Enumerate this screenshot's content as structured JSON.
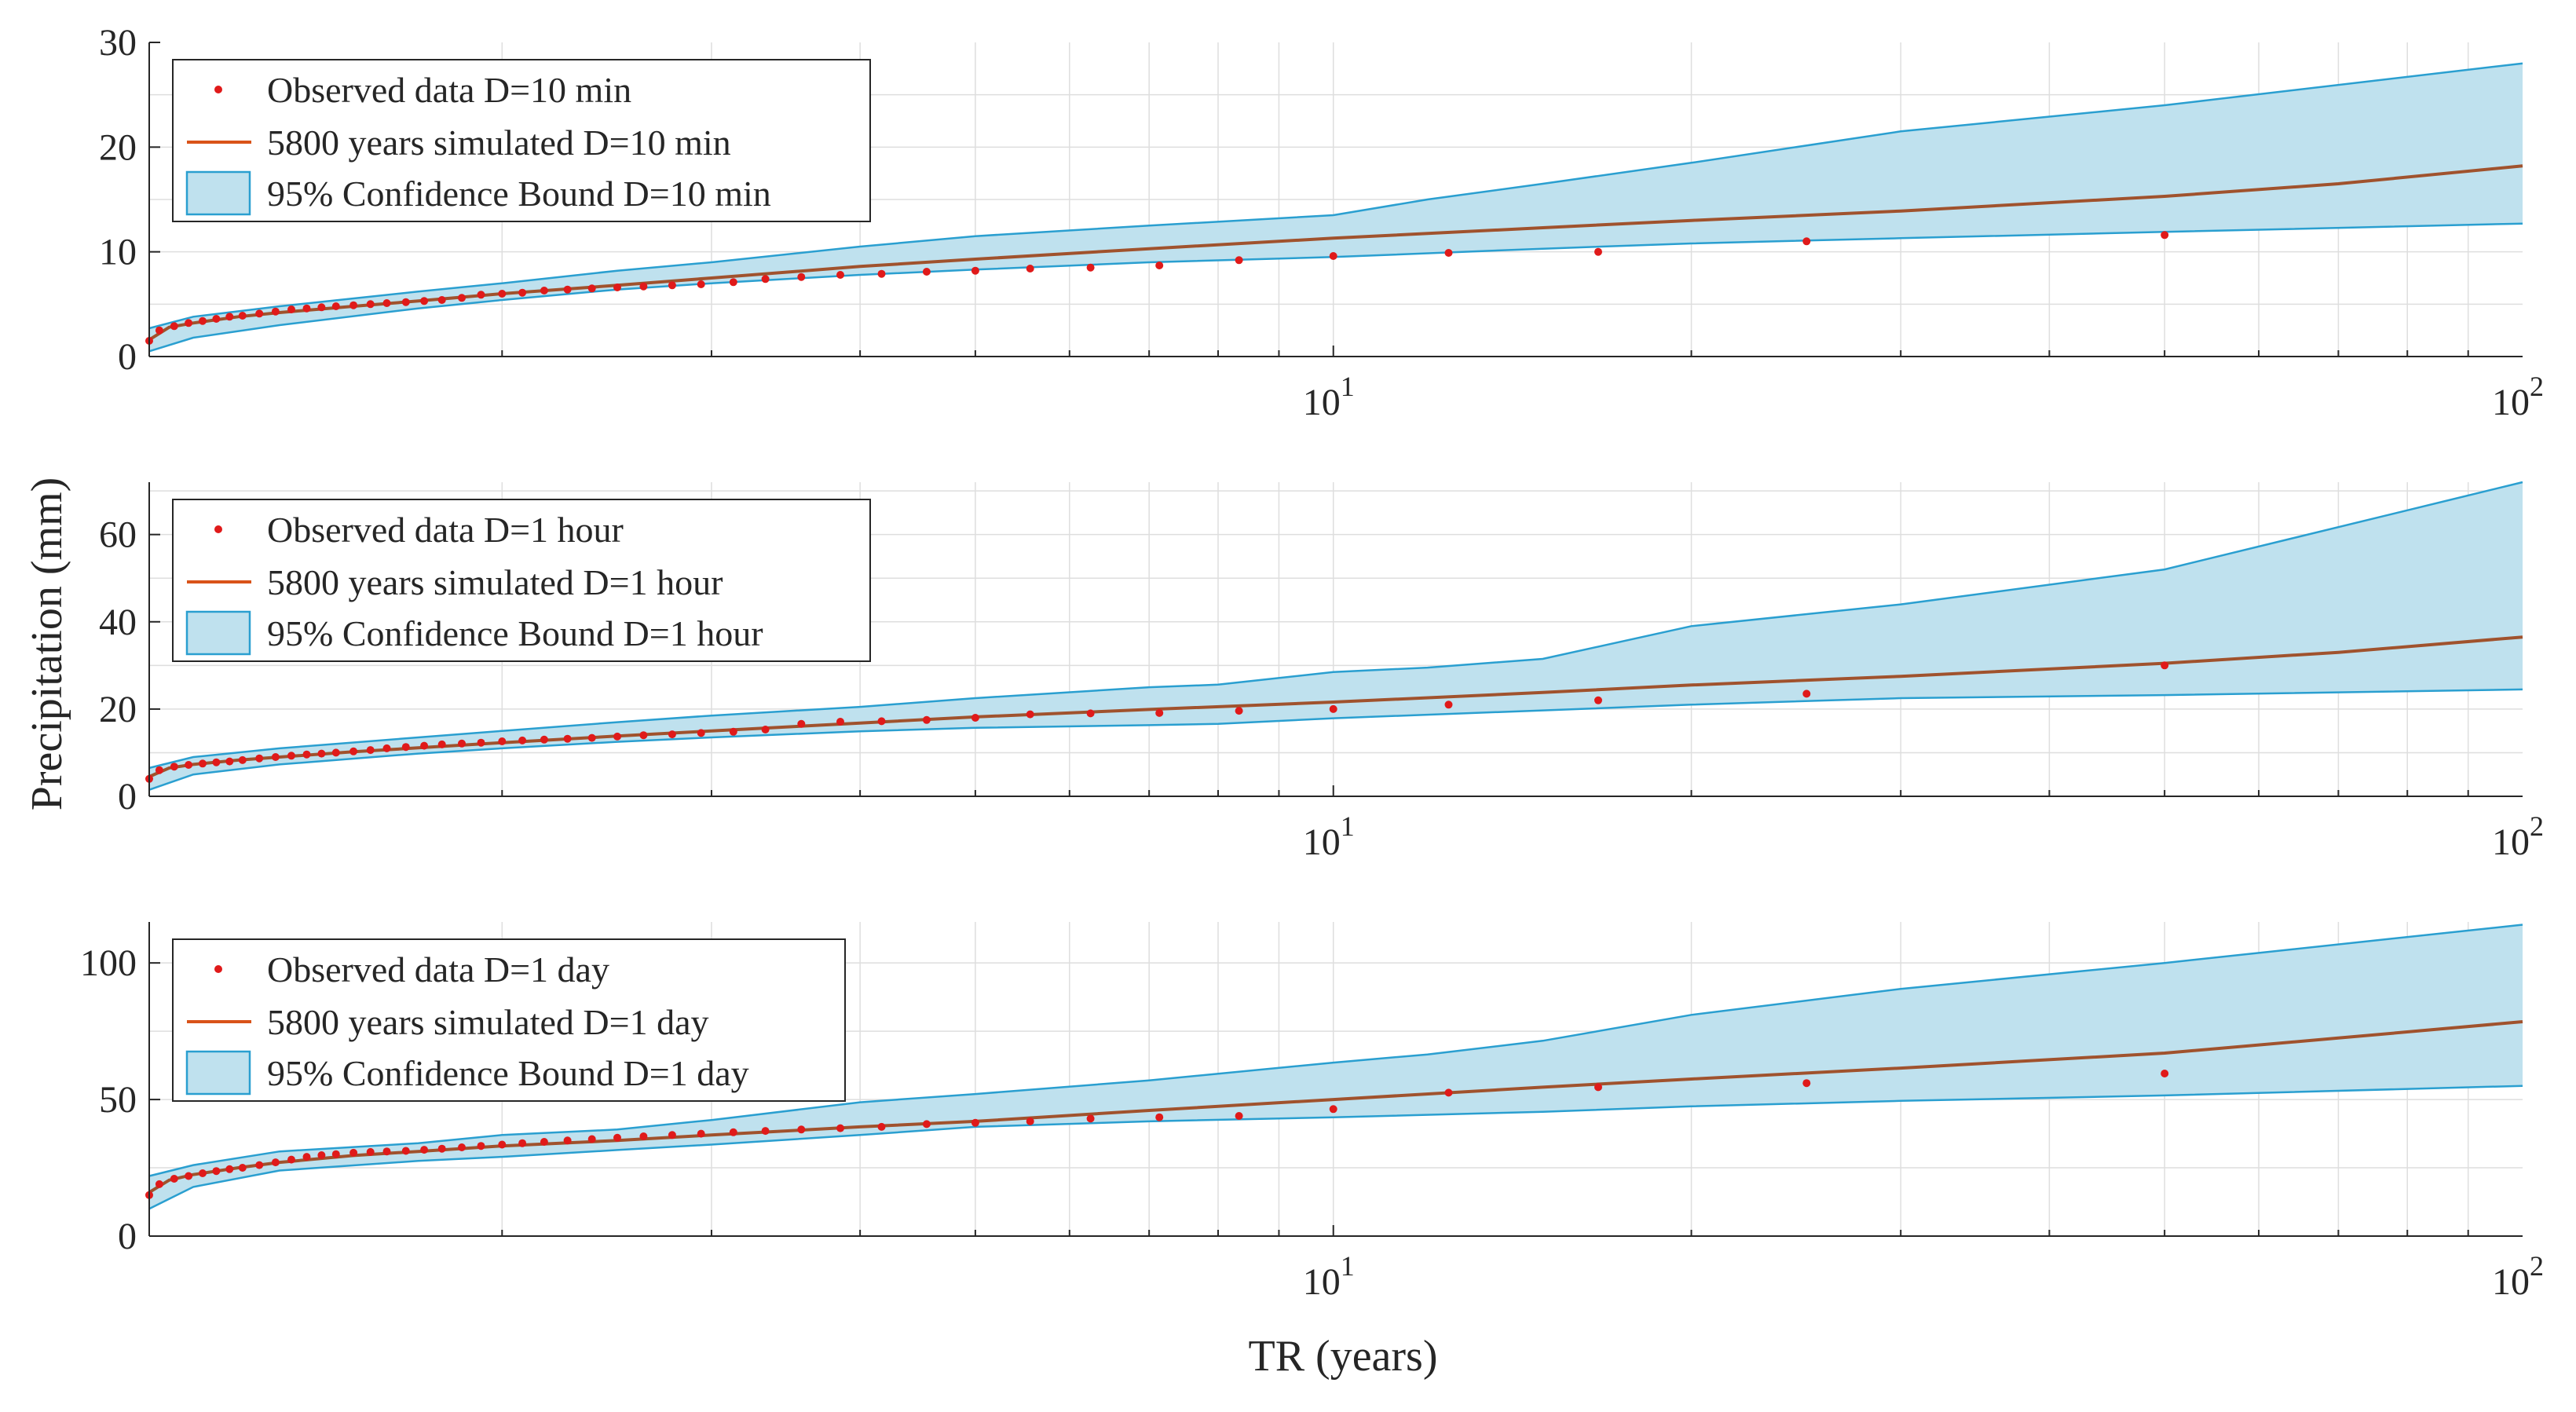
{
  "figure": {
    "xlabel": "TR (years)",
    "ylabel": "Precipitation (mm)",
    "x_base": "10",
    "colors": {
      "observed": "#e01a1a",
      "simulated": "#a0522d",
      "simulated_legend": "#d95319",
      "band_fill": "#bfe1ee",
      "band_edge": "#2a9fd0",
      "grid": "#dedede",
      "axis": "#262626"
    }
  },
  "chart_data": [
    {
      "type": "line",
      "title": "",
      "xlabel": "",
      "ylabel": "",
      "xscale": "log",
      "xlim": [
        1.01,
        100
      ],
      "ylim": [
        0,
        30
      ],
      "yticks": [
        0,
        10,
        20,
        30
      ],
      "xtick_labels": [
        {
          "value": 10,
          "exp": "1"
        },
        {
          "value": 100,
          "exp": "2"
        }
      ],
      "legend": {
        "position": "top-left",
        "entries": [
          "Observed data D=10 min",
          "5800 years simulated D=10 min",
          "95% Confidence Bound D=10 min"
        ]
      },
      "observed": {
        "name": "Observed data D=10 min",
        "x": [
          1.01,
          1.03,
          1.06,
          1.09,
          1.12,
          1.15,
          1.18,
          1.21,
          1.25,
          1.29,
          1.33,
          1.37,
          1.41,
          1.45,
          1.5,
          1.55,
          1.6,
          1.66,
          1.72,
          1.78,
          1.85,
          1.92,
          2.0,
          2.08,
          2.17,
          2.27,
          2.38,
          2.5,
          2.63,
          2.78,
          2.94,
          3.13,
          3.33,
          3.57,
          3.85,
          4.17,
          4.55,
          5.0,
          5.56,
          6.25,
          7.14,
          8.33,
          10.0,
          12.5,
          16.7,
          25.0,
          50.0
        ],
        "y": [
          1.5,
          2.5,
          2.9,
          3.2,
          3.4,
          3.6,
          3.8,
          3.9,
          4.1,
          4.3,
          4.5,
          4.6,
          4.7,
          4.8,
          4.9,
          5.0,
          5.1,
          5.2,
          5.3,
          5.4,
          5.6,
          5.9,
          6.0,
          6.1,
          6.3,
          6.4,
          6.5,
          6.6,
          6.7,
          6.8,
          6.9,
          7.1,
          7.4,
          7.6,
          7.8,
          7.9,
          8.1,
          8.2,
          8.4,
          8.5,
          8.7,
          9.2,
          9.6,
          9.9,
          10.0,
          11.0,
          11.6
        ]
      },
      "simulated": {
        "name": "5800 years simulated D=10 min",
        "x": [
          1.01,
          1.05,
          1.1,
          1.2,
          1.3,
          1.5,
          1.7,
          2.0,
          2.5,
          3.0,
          4.0,
          5.0,
          7.0,
          10.0,
          15.0,
          20.0,
          30.0,
          50.0,
          70.0,
          100.0
        ],
        "y": [
          1.6,
          2.8,
          3.2,
          3.8,
          4.2,
          4.8,
          5.3,
          6.0,
          6.8,
          7.5,
          8.6,
          9.3,
          10.3,
          11.3,
          12.3,
          13.0,
          13.9,
          15.3,
          16.5,
          18.2
        ]
      },
      "band_upper": {
        "x": [
          1.01,
          1.1,
          1.3,
          1.7,
          2.0,
          2.5,
          3.0,
          4.0,
          5.0,
          7.0,
          10.0,
          12.0,
          15.0,
          20.0,
          30.0,
          50.0,
          100.0
        ],
        "y": [
          2.7,
          3.8,
          4.8,
          6.2,
          7.0,
          8.2,
          9.0,
          10.5,
          11.5,
          12.5,
          13.5,
          15.0,
          16.5,
          18.5,
          21.5,
          24.0,
          28.0
        ]
      },
      "band_lower": {
        "x": [
          1.01,
          1.1,
          1.3,
          1.7,
          2.0,
          2.5,
          3.0,
          4.0,
          5.0,
          7.0,
          10.0,
          15.0,
          20.0,
          30.0,
          50.0,
          100.0
        ],
        "y": [
          0.5,
          1.8,
          3.0,
          4.6,
          5.4,
          6.4,
          7.0,
          7.8,
          8.3,
          9.0,
          9.5,
          10.3,
          10.8,
          11.3,
          11.9,
          12.7
        ]
      }
    },
    {
      "type": "line",
      "title": "",
      "xlabel": "",
      "ylabel": "",
      "xscale": "log",
      "xlim": [
        1.01,
        100
      ],
      "ylim": [
        0,
        72
      ],
      "yticks": [
        0,
        20,
        40,
        60
      ],
      "xtick_labels": [
        {
          "value": 10,
          "exp": "1"
        },
        {
          "value": 100,
          "exp": "2"
        }
      ],
      "legend": {
        "position": "top-left",
        "entries": [
          "Observed data D=1 hour",
          "5800 years simulated D=1 hour",
          "95% Confidence Bound D=1 hour"
        ]
      },
      "observed": {
        "name": "Observed data D=1 hour",
        "x": [
          1.01,
          1.03,
          1.06,
          1.09,
          1.12,
          1.15,
          1.18,
          1.21,
          1.25,
          1.29,
          1.33,
          1.37,
          1.41,
          1.45,
          1.5,
          1.55,
          1.6,
          1.66,
          1.72,
          1.78,
          1.85,
          1.92,
          2.0,
          2.08,
          2.17,
          2.27,
          2.38,
          2.5,
          2.63,
          2.78,
          2.94,
          3.13,
          3.33,
          3.57,
          3.85,
          4.17,
          4.55,
          5.0,
          5.56,
          6.25,
          7.14,
          8.33,
          10.0,
          12.5,
          16.7,
          25.0,
          50.0
        ],
        "y": [
          4.0,
          6.0,
          6.8,
          7.2,
          7.5,
          7.8,
          8.0,
          8.3,
          8.7,
          9.0,
          9.3,
          9.6,
          9.8,
          10.0,
          10.3,
          10.6,
          11.0,
          11.3,
          11.6,
          11.9,
          12.1,
          12.3,
          12.6,
          12.8,
          13.0,
          13.2,
          13.4,
          13.7,
          14.0,
          14.2,
          14.5,
          14.8,
          15.3,
          16.6,
          17.1,
          17.2,
          17.5,
          18.0,
          18.8,
          19.0,
          19.1,
          19.6,
          20.0,
          21.0,
          22.0,
          23.5,
          30.0
        ]
      },
      "simulated": {
        "name": "5800 years simulated D=1 hour",
        "x": [
          1.01,
          1.05,
          1.1,
          1.2,
          1.3,
          1.5,
          1.7,
          2.0,
          2.5,
          3.0,
          4.0,
          5.0,
          7.0,
          10.0,
          15.0,
          20.0,
          30.0,
          50.0,
          70.0,
          100.0
        ],
        "y": [
          4.5,
          6.5,
          7.3,
          8.3,
          9.0,
          10.2,
          11.1,
          12.3,
          13.8,
          15.0,
          16.8,
          18.2,
          19.9,
          21.6,
          23.8,
          25.5,
          27.5,
          30.5,
          33.0,
          36.5
        ]
      },
      "band_upper": {
        "x": [
          1.01,
          1.1,
          1.3,
          1.7,
          2.0,
          2.5,
          3.0,
          4.0,
          5.0,
          7.0,
          8.0,
          10.0,
          12.0,
          15.0,
          20.0,
          30.0,
          50.0,
          100.0
        ],
        "y": [
          6.5,
          9.0,
          11.0,
          13.5,
          15.0,
          17.0,
          18.5,
          20.5,
          22.5,
          25.0,
          25.6,
          28.5,
          29.5,
          31.5,
          39.0,
          44.0,
          52.0,
          72.0
        ]
      },
      "band_lower": {
        "x": [
          1.01,
          1.1,
          1.3,
          1.7,
          2.0,
          2.5,
          3.0,
          4.0,
          5.0,
          7.0,
          8.0,
          10.0,
          15.0,
          20.0,
          30.0,
          50.0,
          100.0
        ],
        "y": [
          1.5,
          5.0,
          7.3,
          9.8,
          11.0,
          12.5,
          13.5,
          14.9,
          15.7,
          16.3,
          16.6,
          17.9,
          19.7,
          21.0,
          22.5,
          23.2,
          24.5
        ]
      }
    },
    {
      "type": "line",
      "title": "",
      "xlabel": "",
      "ylabel": "",
      "xscale": "log",
      "xlim": [
        1.01,
        100
      ],
      "ylim": [
        0,
        115
      ],
      "yticks": [
        0,
        50,
        100
      ],
      "xtick_labels": [
        {
          "value": 10,
          "exp": "1"
        },
        {
          "value": 100,
          "exp": "2"
        }
      ],
      "legend": {
        "position": "top-left",
        "entries": [
          "Observed data D=1 day",
          "5800 years simulated D=1 day",
          "95% Confidence Bound D=1 day"
        ]
      },
      "observed": {
        "name": "Observed data D=1 day",
        "x": [
          1.01,
          1.03,
          1.06,
          1.09,
          1.12,
          1.15,
          1.18,
          1.21,
          1.25,
          1.29,
          1.33,
          1.37,
          1.41,
          1.45,
          1.5,
          1.55,
          1.6,
          1.66,
          1.72,
          1.78,
          1.85,
          1.92,
          2.0,
          2.08,
          2.17,
          2.27,
          2.38,
          2.5,
          2.63,
          2.78,
          2.94,
          3.13,
          3.33,
          3.57,
          3.85,
          4.17,
          4.55,
          5.0,
          5.56,
          6.25,
          7.14,
          8.33,
          10.0,
          12.5,
          16.7,
          25.0,
          50.0
        ],
        "y": [
          15.0,
          19.0,
          21.0,
          22.0,
          23.0,
          23.8,
          24.5,
          25.0,
          26.0,
          27.0,
          28.0,
          29.0,
          29.6,
          30.0,
          30.5,
          30.8,
          31.0,
          31.2,
          31.6,
          32.0,
          32.5,
          33.0,
          33.5,
          34.0,
          34.5,
          35.0,
          35.5,
          36.0,
          36.5,
          37.0,
          37.5,
          38.0,
          38.5,
          39.0,
          39.5,
          40.0,
          41.0,
          41.5,
          42.0,
          43.0,
          43.5,
          44.0,
          46.5,
          52.5,
          54.5,
          56.0,
          59.5
        ]
      },
      "simulated": {
        "name": "5800 years simulated D=1 day",
        "x": [
          1.01,
          1.05,
          1.1,
          1.2,
          1.3,
          1.5,
          1.7,
          2.0,
          2.5,
          3.0,
          4.0,
          5.0,
          7.0,
          10.0,
          15.0,
          20.0,
          30.0,
          50.0,
          70.0,
          100.0
        ],
        "y": [
          16.0,
          20.5,
          22.5,
          25.0,
          27.0,
          29.5,
          31.0,
          33.0,
          35.0,
          37.0,
          40.0,
          42.0,
          46.0,
          50.0,
          54.5,
          57.5,
          61.5,
          67.0,
          72.5,
          78.5
        ]
      },
      "band_upper": {
        "x": [
          1.01,
          1.1,
          1.3,
          1.7,
          2.0,
          2.5,
          3.0,
          4.0,
          5.0,
          7.0,
          10.0,
          12.0,
          15.0,
          20.0,
          30.0,
          50.0,
          100.0
        ],
        "y": [
          22.0,
          26.0,
          31.0,
          34.0,
          37.0,
          39.0,
          42.5,
          49.0,
          52.0,
          57.0,
          63.5,
          66.5,
          71.5,
          81.0,
          90.5,
          100.0,
          114.0
        ]
      },
      "band_lower": {
        "x": [
          1.01,
          1.1,
          1.3,
          1.7,
          2.0,
          2.5,
          3.0,
          4.0,
          5.0,
          7.0,
          10.0,
          15.0,
          20.0,
          30.0,
          50.0,
          100.0
        ],
        "y": [
          10.0,
          18.0,
          24.0,
          27.5,
          29.0,
          31.5,
          33.5,
          37.0,
          40.0,
          42.0,
          43.5,
          45.5,
          47.5,
          49.5,
          51.5,
          55.0
        ]
      }
    }
  ]
}
